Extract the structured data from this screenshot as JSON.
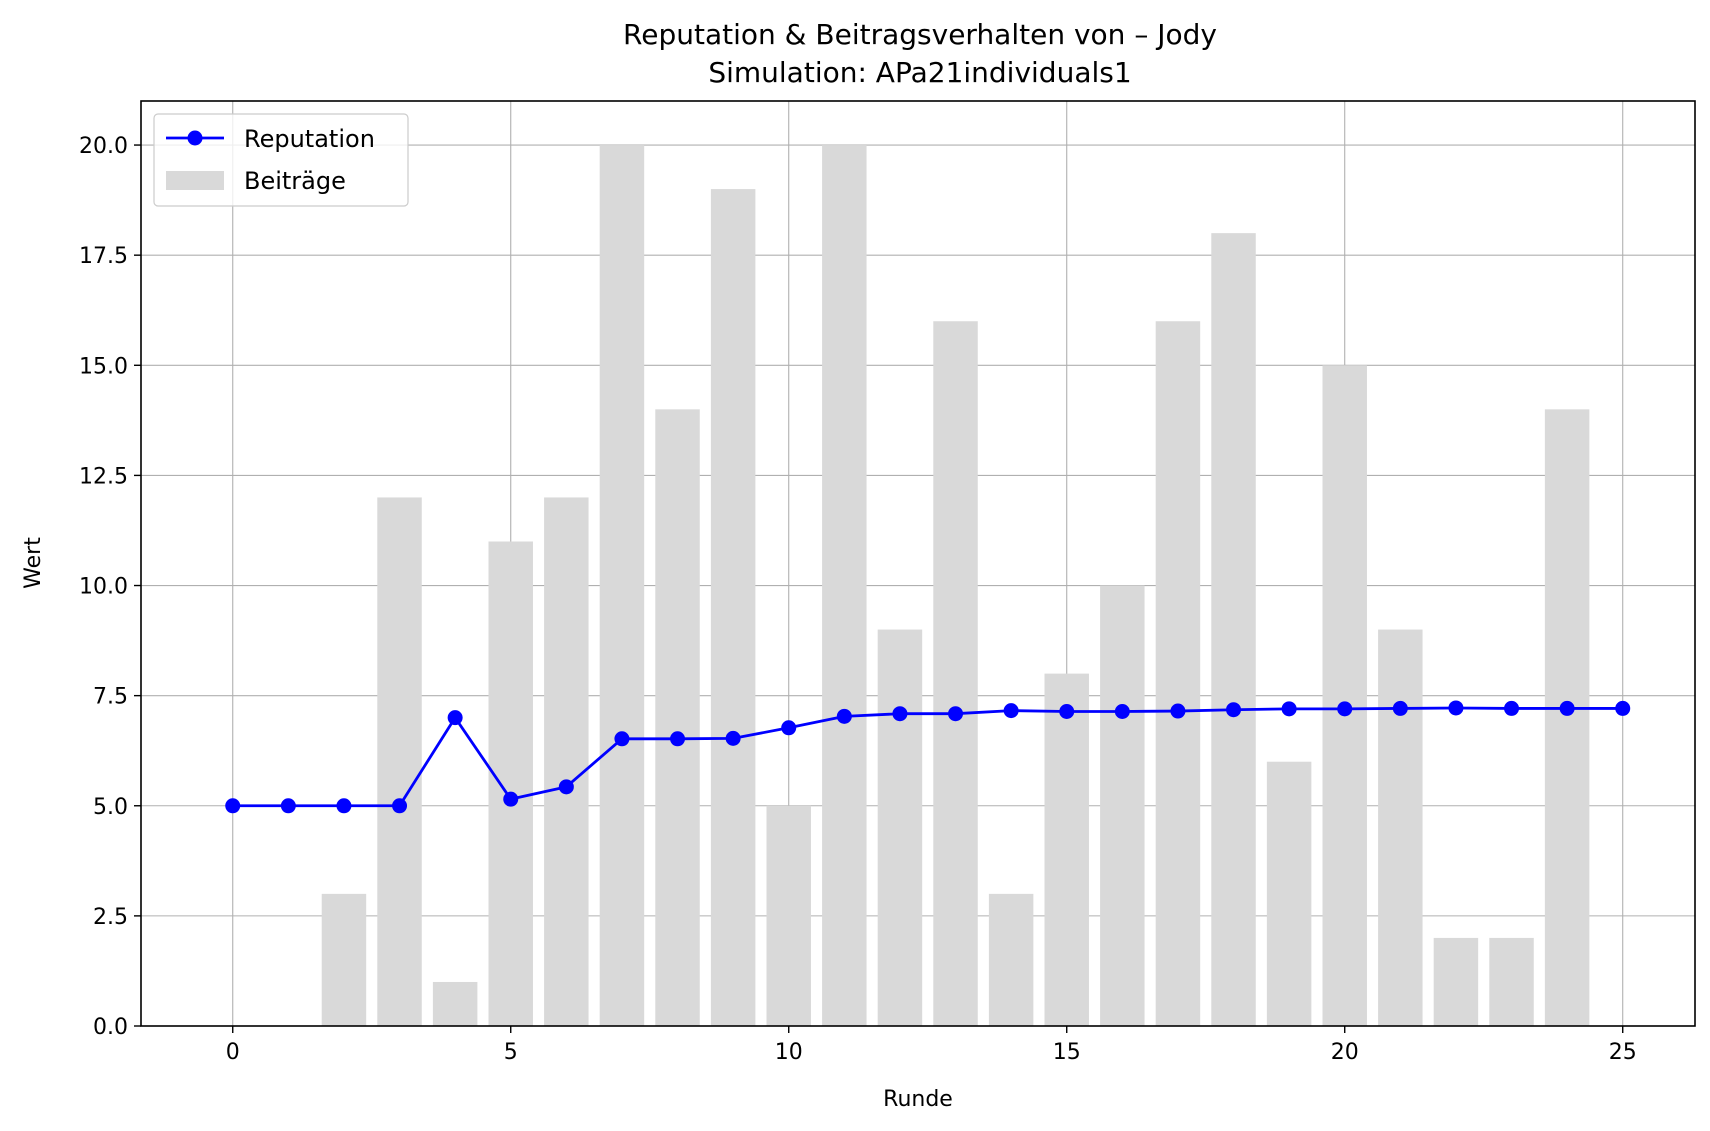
{
  "chart_data": {
    "type": "bar+line",
    "title": "Reputation & Beitragsverhalten von – Jody",
    "subtitle": "Simulation: APa21individuals1",
    "xlabel": "Runde",
    "ylabel": "Wert",
    "xlim": [
      -1.65,
      26.3
    ],
    "ylim": [
      0,
      21
    ],
    "xticks": [
      0,
      5,
      10,
      15,
      20,
      25
    ],
    "yticks": [
      0.0,
      2.5,
      5.0,
      7.5,
      10.0,
      12.5,
      15.0,
      17.5,
      20.0
    ],
    "xtick_labels": [
      "0",
      "5",
      "10",
      "15",
      "20",
      "25"
    ],
    "ytick_labels": [
      "0.0",
      "2.5",
      "5.0",
      "7.5",
      "10.0",
      "12.5",
      "15.0",
      "17.5",
      "20.0"
    ],
    "grid": true,
    "legend_position": "top-left",
    "series": [
      {
        "name": "Reputation",
        "kind": "line",
        "color": "#0000ff",
        "marker": "circle",
        "x": [
          0,
          1,
          2,
          3,
          4,
          5,
          6,
          7,
          8,
          9,
          10,
          11,
          12,
          13,
          14,
          15,
          16,
          17,
          18,
          19,
          20,
          21,
          22,
          23,
          24,
          25
        ],
        "values": [
          5.0,
          5.0,
          5.0,
          5.0,
          7.0,
          5.15,
          5.43,
          6.52,
          6.52,
          6.53,
          6.77,
          7.03,
          7.09,
          7.09,
          7.16,
          7.14,
          7.14,
          7.15,
          7.18,
          7.2,
          7.2,
          7.21,
          7.22,
          7.21,
          7.21,
          7.21
        ]
      },
      {
        "name": "Beiträge",
        "kind": "bar",
        "color": "#d9d9d9",
        "x": [
          0,
          1,
          2,
          3,
          4,
          5,
          6,
          7,
          8,
          9,
          10,
          11,
          12,
          13,
          14,
          15,
          16,
          17,
          18,
          19,
          20,
          21,
          22,
          23,
          24,
          25
        ],
        "values": [
          0,
          0,
          3,
          12,
          1,
          11,
          12,
          20,
          14,
          19,
          5,
          20,
          9,
          16,
          3,
          8,
          10,
          16,
          18,
          6,
          15,
          9,
          2,
          2,
          14,
          0
        ]
      }
    ]
  }
}
